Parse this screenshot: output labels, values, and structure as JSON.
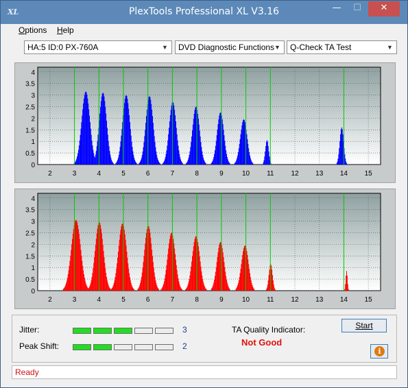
{
  "window": {
    "title": "PlexTools Professional XL V3.16",
    "icon_text": "XL"
  },
  "controls": {
    "minimize": "—",
    "maximize": "☐",
    "close": "✕"
  },
  "menu": [
    {
      "key": "O",
      "rest": "ptions"
    },
    {
      "key": "H",
      "rest": "elp"
    }
  ],
  "toolbar": {
    "drive": "HA:5 ID:0  PX-760A",
    "function": "DVD Diagnostic Functions",
    "test": "Q-Check TA Test"
  },
  "chart_data": [
    {
      "type": "bar",
      "name_hint": "land-distribution",
      "x_ticks": [
        2,
        3,
        4,
        5,
        6,
        7,
        8,
        9,
        10,
        11,
        12,
        13,
        14,
        15
      ],
      "y_ticks": [
        0,
        0.5,
        1,
        1.5,
        2,
        2.5,
        3,
        3.5,
        4
      ],
      "xlim": [
        1.5,
        15.5
      ],
      "ylim": [
        0,
        4.2
      ],
      "grid": true,
      "bar_color": "#0000ff",
      "reference_lines": [
        3,
        4,
        5,
        6,
        7,
        8,
        9,
        10,
        11,
        14
      ],
      "reference_color": "#00cc00",
      "peaks": [
        {
          "x": 3.45,
          "height": 3.15,
          "width": 0.3
        },
        {
          "x": 4.15,
          "height": 3.1,
          "width": 0.27
        },
        {
          "x": 5.1,
          "height": 3.0,
          "width": 0.27
        },
        {
          "x": 6.05,
          "height": 2.95,
          "width": 0.27
        },
        {
          "x": 7.0,
          "height": 2.7,
          "width": 0.26
        },
        {
          "x": 7.95,
          "height": 2.5,
          "width": 0.26
        },
        {
          "x": 8.95,
          "height": 2.25,
          "width": 0.25
        },
        {
          "x": 9.9,
          "height": 1.95,
          "width": 0.25
        },
        {
          "x": 10.85,
          "height": 1.05,
          "width": 0.12
        },
        {
          "x": 13.9,
          "height": 1.6,
          "width": 0.14
        }
      ]
    },
    {
      "type": "bar",
      "name_hint": "pit-distribution",
      "x_ticks": [
        2,
        3,
        4,
        5,
        6,
        7,
        8,
        9,
        10,
        11,
        12,
        13,
        14,
        15
      ],
      "y_ticks": [
        0,
        0.5,
        1,
        1.5,
        2,
        2.5,
        3,
        3.5,
        4
      ],
      "xlim": [
        1.5,
        15.5
      ],
      "ylim": [
        0,
        4.2
      ],
      "grid": true,
      "bar_color": "#ff0000",
      "reference_lines": [
        3,
        4,
        5,
        6,
        7,
        8,
        9,
        10,
        11,
        14
      ],
      "reference_color": "#00cc00",
      "peaks": [
        {
          "x": 3.05,
          "height": 3.05,
          "width": 0.34
        },
        {
          "x": 4.0,
          "height": 2.95,
          "width": 0.3
        },
        {
          "x": 4.95,
          "height": 2.9,
          "width": 0.3
        },
        {
          "x": 6.0,
          "height": 2.8,
          "width": 0.28
        },
        {
          "x": 6.95,
          "height": 2.5,
          "width": 0.28
        },
        {
          "x": 7.95,
          "height": 2.35,
          "width": 0.28
        },
        {
          "x": 8.95,
          "height": 2.1,
          "width": 0.26
        },
        {
          "x": 9.95,
          "height": 1.95,
          "width": 0.26
        },
        {
          "x": 11.0,
          "height": 1.15,
          "width": 0.13
        },
        {
          "x": 14.1,
          "height": 0.85,
          "width": 0.06
        }
      ]
    }
  ],
  "quality": {
    "jitter_label": "Jitter:",
    "jitter_score": "3",
    "jitter_value": 3,
    "peak_label": "Peak Shift:",
    "peak_score": "2",
    "peak_value": 2,
    "segments": 5,
    "indicator_label": "TA Quality Indicator:",
    "verdict": "Not Good",
    "start_label": "Start",
    "info_icon": "i"
  },
  "status": "Ready"
}
